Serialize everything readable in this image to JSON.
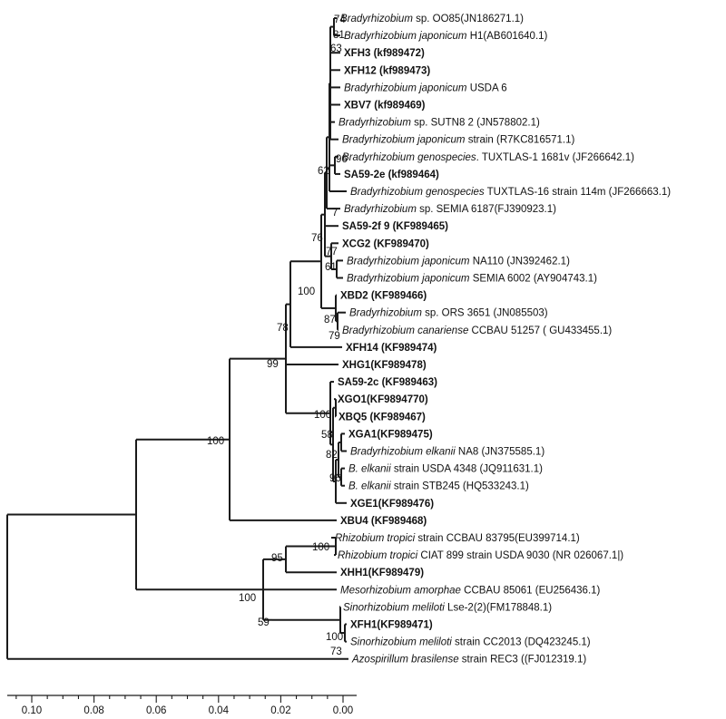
{
  "tree": {
    "leaves": [
      {
        "parts": [
          {
            "t": "Bradyrhizobium",
            "i": true
          },
          {
            "t": " sp. OO85(JN186271.1)"
          }
        ]
      },
      {
        "parts": [
          {
            "t": "Bradyrhizobium japonicum",
            "i": true
          },
          {
            "t": " H1(AB601640.1)"
          }
        ]
      },
      {
        "bold": true,
        "parts": [
          {
            "t": "XFH3 (kf989472)"
          }
        ]
      },
      {
        "bold": true,
        "parts": [
          {
            "t": "XFH12 (kf989473)"
          }
        ]
      },
      {
        "parts": [
          {
            "t": "Bradyrhizobium japonicum",
            "i": true
          },
          {
            "t": " USDA 6"
          }
        ]
      },
      {
        "bold": true,
        "parts": [
          {
            "t": "XBV7 (kf989469)"
          }
        ]
      },
      {
        "parts": [
          {
            "t": "Bradyrhizobium",
            "i": true
          },
          {
            "t": " sp. SUTN8 2 (JN578802.1)"
          }
        ]
      },
      {
        "parts": [
          {
            "t": "Bradyrhizobium japonicum",
            "i": true
          },
          {
            "t": " strain (R7KC816571.1)"
          }
        ]
      },
      {
        "parts": [
          {
            "t": "Bradyrhizobium genospecies",
            "i": true
          },
          {
            "t": ". TUXTLAS-1 1681v (JF266642.1)"
          }
        ]
      },
      {
        "bold": true,
        "parts": [
          {
            "t": "SA59-2e (kf989464)"
          }
        ]
      },
      {
        "parts": [
          {
            "t": "Bradyrhizobium genospecies",
            "i": true
          },
          {
            "t": " TUXTLAS-16 strain 114m (JF266663.1)"
          }
        ]
      },
      {
        "parts": [
          {
            "t": "Bradyrhizobium",
            "i": true
          },
          {
            "t": " sp. SEMIA 6187(FJ390923.1)"
          }
        ]
      },
      {
        "bold": true,
        "parts": [
          {
            "t": "SA59-2f 9 (KF989465)"
          }
        ]
      },
      {
        "bold": true,
        "parts": [
          {
            "t": "XCG2 (KF989470)"
          }
        ]
      },
      {
        "parts": [
          {
            "t": "Bradyrhizobium japonicum",
            "i": true
          },
          {
            "t": " NA110 (JN392462.1)"
          }
        ]
      },
      {
        "parts": [
          {
            "t": "Bradyrhizobium japonicum",
            "i": true
          },
          {
            "t": " SEMIA 6002 (AY904743.1)"
          }
        ]
      },
      {
        "bold": true,
        "parts": [
          {
            "t": "XBD2 (KF989466)"
          }
        ]
      },
      {
        "parts": [
          {
            "t": "Bradyrhizobium",
            "i": true
          },
          {
            "t": " sp. ORS 3651 (JN085503)"
          }
        ]
      },
      {
        "parts": [
          {
            "t": "Bradyrhizobium canariense",
            "i": true
          },
          {
            "t": " CCBAU 51257 ( GU433455.1)"
          }
        ]
      },
      {
        "bold": true,
        "parts": [
          {
            "t": "XFH14 (KF989474)"
          }
        ]
      },
      {
        "bold": true,
        "parts": [
          {
            "t": "XHG1(KF989478)"
          }
        ]
      },
      {
        "bold": true,
        "parts": [
          {
            "t": "SA59-2c (KF989463)"
          }
        ]
      },
      {
        "bold": true,
        "parts": [
          {
            "t": "XGO1(KF9894770)"
          }
        ]
      },
      {
        "bold": true,
        "parts": [
          {
            "t": "XBQ5 (KF989467)"
          }
        ]
      },
      {
        "bold": true,
        "parts": [
          {
            "t": "XGA1(KF989475)"
          }
        ]
      },
      {
        "parts": [
          {
            "t": "Bradyrhizobium elkanii",
            "i": true
          },
          {
            "t": " NA8 (JN375585.1)"
          }
        ]
      },
      {
        "parts": [
          {
            "t": "B. elkanii",
            "i": true
          },
          {
            "t": " strain USDA 4348 (JQ911631.1)"
          }
        ]
      },
      {
        "parts": [
          {
            "t": "B. elkanii",
            "i": true
          },
          {
            "t": " strain STB245 (HQ533243.1)"
          }
        ]
      },
      {
        "bold": true,
        "parts": [
          {
            "t": "XGE1(KF989476)"
          }
        ]
      },
      {
        "bold": true,
        "parts": [
          {
            "t": "XBU4 (KF989468)"
          }
        ]
      },
      {
        "parts": [
          {
            "t": "Rhizobium tropici",
            "i": true
          },
          {
            "t": " strain CCBAU 83795(EU399714.1)"
          }
        ]
      },
      {
        "parts": [
          {
            "t": "Rhizobium tropici",
            "i": true
          },
          {
            "t": " CIAT 899 strain USDA 9030 (NR 026067.1|)"
          }
        ]
      },
      {
        "bold": true,
        "parts": [
          {
            "t": "XHH1(KF989479)"
          }
        ]
      },
      {
        "parts": [
          {
            "t": "Mesorhizobium amorphae",
            "i": true
          },
          {
            "t": " CCBAU 85061 (EU256436.1)"
          }
        ]
      },
      {
        "parts": [
          {
            "t": "Sinorhizobium meliloti",
            "i": true
          },
          {
            "t": " Lse-2(2)(FM178848.1)"
          }
        ]
      },
      {
        "bold": true,
        "parts": [
          {
            "t": "XFH1(KF989471)"
          }
        ]
      },
      {
        "parts": [
          {
            "t": "Sinorhizobium meliloti",
            "i": true
          },
          {
            "t": " strain CC2013 (DQ423245.1)"
          }
        ]
      },
      {
        "parts": [
          {
            "t": "Azospirillum brasilense",
            "i": true
          },
          {
            "t": " strain REC3 ((FJ012319.1)"
          }
        ]
      }
    ],
    "support_values": [
      "74",
      "81",
      "63",
      "96",
      "62",
      "7",
      "76",
      "77",
      "61",
      "100",
      "87",
      "79",
      "78",
      "99",
      "100",
      "58",
      "82",
      "96",
      "100",
      "100",
      "95",
      "100",
      "59",
      "100",
      "73"
    ],
    "scale": {
      "ticks": [
        0.1,
        0.08,
        0.06,
        0.04,
        0.02,
        0.0
      ],
      "tick_labels": [
        "0.10",
        "0.08",
        "0.06",
        "0.04",
        "0.02",
        "0.00"
      ]
    }
  }
}
